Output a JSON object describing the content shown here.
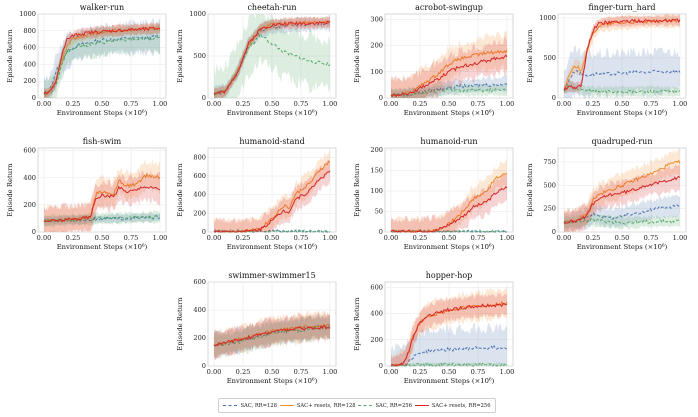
{
  "chart_data": [
    {
      "type": "line",
      "title": "walker-run",
      "xlabel": "Environment Steps (×10⁶)",
      "ylabel": "Episode Return",
      "xlim": [
        0,
        1
      ],
      "ylim": [
        0,
        1000
      ],
      "xticks": [
        "0.00",
        "0.25",
        "0.50",
        "0.75",
        "1.00"
      ],
      "yticks": [
        0,
        200,
        400,
        600,
        800,
        1000
      ],
      "x": [
        0,
        0.05,
        0.1,
        0.15,
        0.2,
        0.25,
        0.3,
        0.4,
        0.5,
        0.6,
        0.7,
        0.8,
        0.9,
        1.0
      ],
      "series": [
        {
          "name": "SAC, RR=128",
          "values": [
            60,
            90,
            300,
            450,
            550,
            600,
            630,
            660,
            690,
            700,
            710,
            715,
            720,
            730
          ],
          "band": 180
        },
        {
          "name": "SAC+ resets, RR=128",
          "values": [
            50,
            70,
            200,
            420,
            620,
            700,
            730,
            760,
            780,
            800,
            810,
            820,
            825,
            830
          ],
          "band": 60
        },
        {
          "name": "SAC, RR=256",
          "values": [
            50,
            60,
            150,
            380,
            550,
            600,
            620,
            640,
            660,
            680,
            690,
            700,
            705,
            710
          ],
          "band": 150
        },
        {
          "name": "SAC+ resets, RR=256",
          "values": [
            50,
            70,
            180,
            500,
            700,
            740,
            760,
            780,
            790,
            800,
            810,
            815,
            820,
            830
          ],
          "band": 60
        }
      ]
    },
    {
      "type": "line",
      "title": "cheetah-run",
      "xlabel": "Environment Steps (×10⁶)",
      "ylabel": "Episode Return",
      "xlim": [
        0,
        1
      ],
      "ylim": [
        0,
        1000
      ],
      "xticks": [
        "0.00",
        "0.25",
        "0.50",
        "0.75",
        "1.00"
      ],
      "yticks": [
        0,
        500,
        1000
      ],
      "x": [
        0,
        0.1,
        0.2,
        0.3,
        0.4,
        0.5,
        0.6,
        0.7,
        0.8,
        0.9,
        1.0
      ],
      "series": [
        {
          "name": "SAC, RR=128",
          "values": [
            50,
            80,
            300,
            650,
            800,
            850,
            860,
            870,
            880,
            880,
            890
          ],
          "band": 80
        },
        {
          "name": "SAC+ resets, RR=128",
          "values": [
            50,
            80,
            300,
            650,
            820,
            880,
            890,
            895,
            900,
            900,
            900
          ],
          "band": 60
        },
        {
          "name": "SAC, RR=256",
          "values": [
            50,
            80,
            300,
            600,
            750,
            650,
            550,
            500,
            450,
            420,
            400
          ],
          "band": 300
        },
        {
          "name": "SAC+ resets, RR=256",
          "values": [
            50,
            80,
            300,
            650,
            820,
            870,
            880,
            890,
            890,
            895,
            900
          ],
          "band": 60
        }
      ]
    },
    {
      "type": "line",
      "title": "acrobot-swingup",
      "xlabel": "Environment Steps (×10⁶)",
      "ylabel": "Episode Return",
      "xlim": [
        0,
        1
      ],
      "ylim": [
        0,
        320
      ],
      "xticks": [
        "0.00",
        "0.25",
        "0.50",
        "0.75",
        "1.00"
      ],
      "yticks": [
        0,
        100,
        200,
        300
      ],
      "x": [
        0,
        0.1,
        0.2,
        0.3,
        0.4,
        0.5,
        0.6,
        0.7,
        0.8,
        0.9,
        1.0
      ],
      "series": [
        {
          "name": "SAC, RR=128",
          "values": [
            10,
            12,
            15,
            25,
            35,
            40,
            45,
            45,
            50,
            50,
            55
          ],
          "band": 25
        },
        {
          "name": "SAC+ resets, RR=128",
          "values": [
            10,
            15,
            30,
            60,
            90,
            130,
            150,
            160,
            170,
            175,
            180
          ],
          "band": 60
        },
        {
          "name": "SAC, RR=256",
          "values": [
            10,
            12,
            15,
            20,
            25,
            30,
            30,
            30,
            30,
            30,
            30
          ],
          "band": 20
        },
        {
          "name": "SAC+ resets, RR=256",
          "values": [
            10,
            15,
            25,
            50,
            70,
            100,
            120,
            130,
            140,
            150,
            160
          ],
          "band": 60
        }
      ]
    },
    {
      "type": "line",
      "title": "finger-turn_hard",
      "xlabel": "Environment Steps (×10⁶)",
      "ylabel": "Episode Return",
      "xlim": [
        0,
        1
      ],
      "ylim": [
        0,
        1050
      ],
      "xticks": [
        "0.00",
        "0.25",
        "0.50",
        "0.75",
        "1.00"
      ],
      "yticks": [
        0,
        500,
        1000
      ],
      "x": [
        0,
        0.05,
        0.1,
        0.15,
        0.2,
        0.25,
        0.3,
        0.4,
        0.5,
        0.6,
        0.7,
        0.8,
        0.9,
        1.0
      ],
      "series": [
        {
          "name": "SAC, RR=128",
          "values": [
            100,
            250,
            350,
            300,
            280,
            300,
            300,
            300,
            310,
            320,
            320,
            330,
            330,
            330
          ],
          "band": 250
        },
        {
          "name": "SAC+ resets, RR=128",
          "values": [
            100,
            300,
            400,
            350,
            600,
            800,
            900,
            930,
            940,
            950,
            950,
            960,
            960,
            960
          ],
          "band": 80
        },
        {
          "name": "SAC, RR=256",
          "values": [
            100,
            150,
            120,
            100,
            90,
            80,
            80,
            80,
            80,
            80,
            80,
            80,
            80,
            80
          ],
          "band": 60
        },
        {
          "name": "SAC+ resets, RR=256",
          "values": [
            100,
            150,
            130,
            150,
            600,
            850,
            930,
            950,
            960,
            960,
            965,
            965,
            970,
            970
          ],
          "band": 60
        }
      ]
    },
    {
      "type": "line",
      "title": "fish-swim",
      "xlabel": "Environment Steps (×10⁶)",
      "ylabel": "Episode Return",
      "xlim": [
        0,
        1
      ],
      "ylim": [
        0,
        620
      ],
      "xticks": [
        "0.00",
        "0.25",
        "0.50",
        "0.75",
        "1.00"
      ],
      "yticks": [
        0,
        200,
        400,
        600
      ],
      "x": [
        0,
        0.1,
        0.2,
        0.3,
        0.4,
        0.45,
        0.5,
        0.6,
        0.65,
        0.7,
        0.8,
        0.85,
        0.9,
        1.0
      ],
      "series": [
        {
          "name": "SAC, RR=128",
          "values": [
            80,
            85,
            90,
            90,
            95,
            95,
            95,
            100,
            100,
            100,
            105,
            105,
            105,
            110
          ],
          "band": 30
        },
        {
          "name": "SAC+ resets, RR=128",
          "values": [
            80,
            85,
            90,
            100,
            110,
            280,
            300,
            280,
            380,
            340,
            350,
            400,
            420,
            400
          ],
          "band": 100
        },
        {
          "name": "SAC, RR=256",
          "values": [
            80,
            85,
            90,
            90,
            95,
            100,
            100,
            100,
            100,
            105,
            105,
            110,
            110,
            110
          ],
          "band": 40
        },
        {
          "name": "SAC+ resets, RR=256",
          "values": [
            80,
            85,
            90,
            100,
            110,
            250,
            270,
            260,
            330,
            300,
            310,
            340,
            330,
            320
          ],
          "band": 100
        }
      ]
    },
    {
      "type": "line",
      "title": "humanoid-stand",
      "xlabel": "Environment Steps (×10⁶)",
      "ylabel": "Episode Return",
      "xlim": [
        0,
        1
      ],
      "ylim": [
        0,
        900
      ],
      "xticks": [
        "0.00",
        "0.25",
        "0.50",
        "0.75",
        "1.00"
      ],
      "yticks": [
        0,
        200,
        400,
        600,
        800
      ],
      "x": [
        0,
        0.1,
        0.2,
        0.3,
        0.4,
        0.5,
        0.6,
        0.65,
        0.7,
        0.8,
        0.85,
        0.9,
        1.0
      ],
      "series": [
        {
          "name": "SAC, RR=128",
          "values": [
            5,
            5,
            5,
            5,
            5,
            5,
            5,
            5,
            5,
            5,
            5,
            5,
            5
          ],
          "band": 2
        },
        {
          "name": "SAC+ resets, RR=128",
          "values": [
            5,
            5,
            5,
            10,
            40,
            150,
            280,
            260,
            400,
            500,
            550,
            650,
            760
          ],
          "band": 120
        },
        {
          "name": "SAC, RR=256",
          "values": [
            5,
            5,
            5,
            5,
            5,
            5,
            5,
            5,
            5,
            5,
            5,
            5,
            5
          ],
          "band": 2
        },
        {
          "name": "SAC+ resets, RR=256",
          "values": [
            5,
            5,
            5,
            10,
            30,
            120,
            230,
            220,
            350,
            420,
            480,
            560,
            650
          ],
          "band": 120
        }
      ]
    },
    {
      "type": "line",
      "title": "humanoid-run",
      "xlabel": "Environment Steps (×10⁶)",
      "ylabel": "Episode Return",
      "xlim": [
        0,
        1
      ],
      "ylim": [
        0,
        205
      ],
      "xticks": [
        "0.00",
        "0.25",
        "0.50",
        "0.75",
        "1.00"
      ],
      "yticks": [
        0,
        50,
        100,
        150,
        200
      ],
      "x": [
        0,
        0.1,
        0.2,
        0.3,
        0.4,
        0.5,
        0.6,
        0.65,
        0.7,
        0.8,
        0.85,
        0.9,
        1.0
      ],
      "series": [
        {
          "name": "SAC, RR=128",
          "values": [
            1,
            1,
            1,
            1,
            1,
            1,
            1,
            1,
            1,
            1,
            1,
            1,
            1
          ],
          "band": 1
        },
        {
          "name": "SAC+ resets, RR=128",
          "values": [
            1,
            1,
            1,
            2,
            5,
            20,
            45,
            60,
            80,
            95,
            110,
            130,
            145
          ],
          "band": 30
        },
        {
          "name": "SAC, RR=256",
          "values": [
            1,
            1,
            1,
            1,
            1,
            1,
            1,
            1,
            1,
            1,
            1,
            1,
            1
          ],
          "band": 1
        },
        {
          "name": "SAC+ resets, RR=256",
          "values": [
            1,
            1,
            1,
            2,
            5,
            18,
            35,
            45,
            60,
            70,
            80,
            95,
            110
          ],
          "band": 30
        }
      ]
    },
    {
      "type": "line",
      "title": "quadruped-run",
      "xlabel": "Environment Steps (×10⁶)",
      "ylabel": "Episode Return",
      "xlim": [
        0,
        1
      ],
      "ylim": [
        0,
        900
      ],
      "xticks": [
        "0.00",
        "0.25",
        "0.50",
        "0.75",
        "1.00"
      ],
      "yticks": [
        0,
        250,
        500,
        750
      ],
      "x": [
        0,
        0.1,
        0.2,
        0.25,
        0.3,
        0.4,
        0.5,
        0.6,
        0.7,
        0.8,
        0.9,
        1.0
      ],
      "series": [
        {
          "name": "SAC, RR=128",
          "values": [
            100,
            120,
            150,
            200,
            180,
            150,
            160,
            200,
            220,
            250,
            270,
            280
          ],
          "band": 100
        },
        {
          "name": "SAC+ resets, RR=128",
          "values": [
            100,
            120,
            200,
            350,
            400,
            450,
            500,
            550,
            600,
            650,
            720,
            750
          ],
          "band": 120
        },
        {
          "name": "SAC, RR=256",
          "values": [
            100,
            110,
            120,
            130,
            120,
            110,
            100,
            100,
            110,
            110,
            115,
            120
          ],
          "band": 60
        },
        {
          "name": "SAC+ resets, RR=256",
          "values": [
            100,
            120,
            180,
            300,
            350,
            400,
            420,
            450,
            500,
            520,
            560,
            580
          ],
          "band": 120
        }
      ]
    },
    {
      "type": "line",
      "title": "swimmer-swimmer15",
      "xlabel": "Environment Steps (×10⁶)",
      "ylabel": "Episode Return",
      "xlim": [
        0,
        1
      ],
      "ylim": [
        0,
        600
      ],
      "xticks": [
        "0.00",
        "0.25",
        "0.50",
        "0.75",
        "1.00"
      ],
      "yticks": [
        0,
        200,
        400,
        600
      ],
      "x": [
        0,
        0.1,
        0.2,
        0.3,
        0.4,
        0.5,
        0.6,
        0.7,
        0.8,
        0.9,
        1.0
      ],
      "series": [
        {
          "name": "SAC, RR=128",
          "values": [
            150,
            160,
            180,
            200,
            220,
            240,
            250,
            260,
            270,
            280,
            280
          ],
          "band": 80
        },
        {
          "name": "SAC+ resets, RR=128",
          "values": [
            150,
            170,
            190,
            210,
            230,
            250,
            260,
            270,
            280,
            290,
            290
          ],
          "band": 90
        },
        {
          "name": "SAC, RR=256",
          "values": [
            150,
            160,
            170,
            190,
            210,
            230,
            240,
            250,
            260,
            270,
            270
          ],
          "band": 80
        },
        {
          "name": "SAC+ resets, RR=256",
          "values": [
            150,
            165,
            185,
            205,
            225,
            245,
            255,
            265,
            270,
            275,
            280
          ],
          "band": 90
        }
      ]
    },
    {
      "type": "line",
      "title": "hopper-hop",
      "xlabel": "Environment Steps (×10⁶)",
      "ylabel": "Episode Return",
      "xlim": [
        0,
        1
      ],
      "ylim": [
        0,
        640
      ],
      "xticks": [
        "0.00",
        "0.25",
        "0.50",
        "0.75",
        "1.00"
      ],
      "yticks": [
        0,
        200,
        400,
        600
      ],
      "x": [
        0,
        0.1,
        0.15,
        0.2,
        0.25,
        0.3,
        0.4,
        0.5,
        0.6,
        0.7,
        0.8,
        0.9,
        1.0
      ],
      "series": [
        {
          "name": "SAC, RR=128",
          "values": [
            0,
            5,
            30,
            80,
            100,
            110,
            120,
            125,
            130,
            135,
            140,
            140,
            140
          ],
          "band": 150
        },
        {
          "name": "SAC+ resets, RR=128",
          "values": [
            0,
            10,
            100,
            250,
            330,
            370,
            400,
            420,
            440,
            450,
            460,
            470,
            480
          ],
          "band": 100
        },
        {
          "name": "SAC, RR=256",
          "values": [
            0,
            2,
            5,
            8,
            10,
            10,
            10,
            10,
            10,
            10,
            10,
            10,
            10
          ],
          "band": 15
        },
        {
          "name": "SAC+ resets, RR=256",
          "values": [
            0,
            10,
            100,
            250,
            330,
            370,
            410,
            430,
            440,
            450,
            460,
            460,
            470
          ],
          "band": 80
        }
      ]
    }
  ],
  "legend": {
    "entries": [
      {
        "name": "SAC, RR=128",
        "color": "#4c72b0",
        "dash": "3,2"
      },
      {
        "name": "SAC+ resets, RR=128",
        "color": "#f28e2b",
        "dash": ""
      },
      {
        "name": "SAC, RR=256",
        "color": "#55a868",
        "dash": "3,2"
      },
      {
        "name": "SAC+ resets, RR=256",
        "color": "#d62728",
        "dash": ""
      }
    ]
  }
}
